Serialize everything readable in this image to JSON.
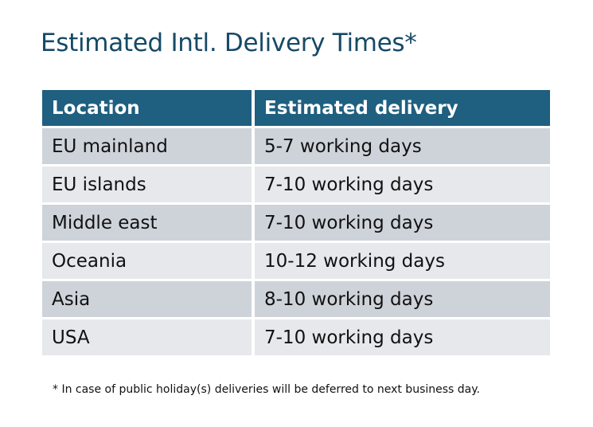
{
  "title": "Estimated Intl. Delivery Times*",
  "table": {
    "headers": [
      "Location",
      "Estimated delivery"
    ],
    "rows": [
      [
        "EU mainland",
        "5-7 working days"
      ],
      [
        "EU islands",
        "7-10 working days"
      ],
      [
        "Middle east",
        "7-10 working days"
      ],
      [
        "Oceania",
        "10-12 working days"
      ],
      [
        "Asia",
        "8-10 working days"
      ],
      [
        "USA",
        "7-10 working days"
      ]
    ]
  },
  "footnote": "* In case of public holiday(s) deliveries will be deferred to next business day.",
  "colors": {
    "title": "#164A66",
    "header_bg": "#1F5F80",
    "row_odd": "#CED3DA",
    "row_even": "#E6E8EB"
  }
}
